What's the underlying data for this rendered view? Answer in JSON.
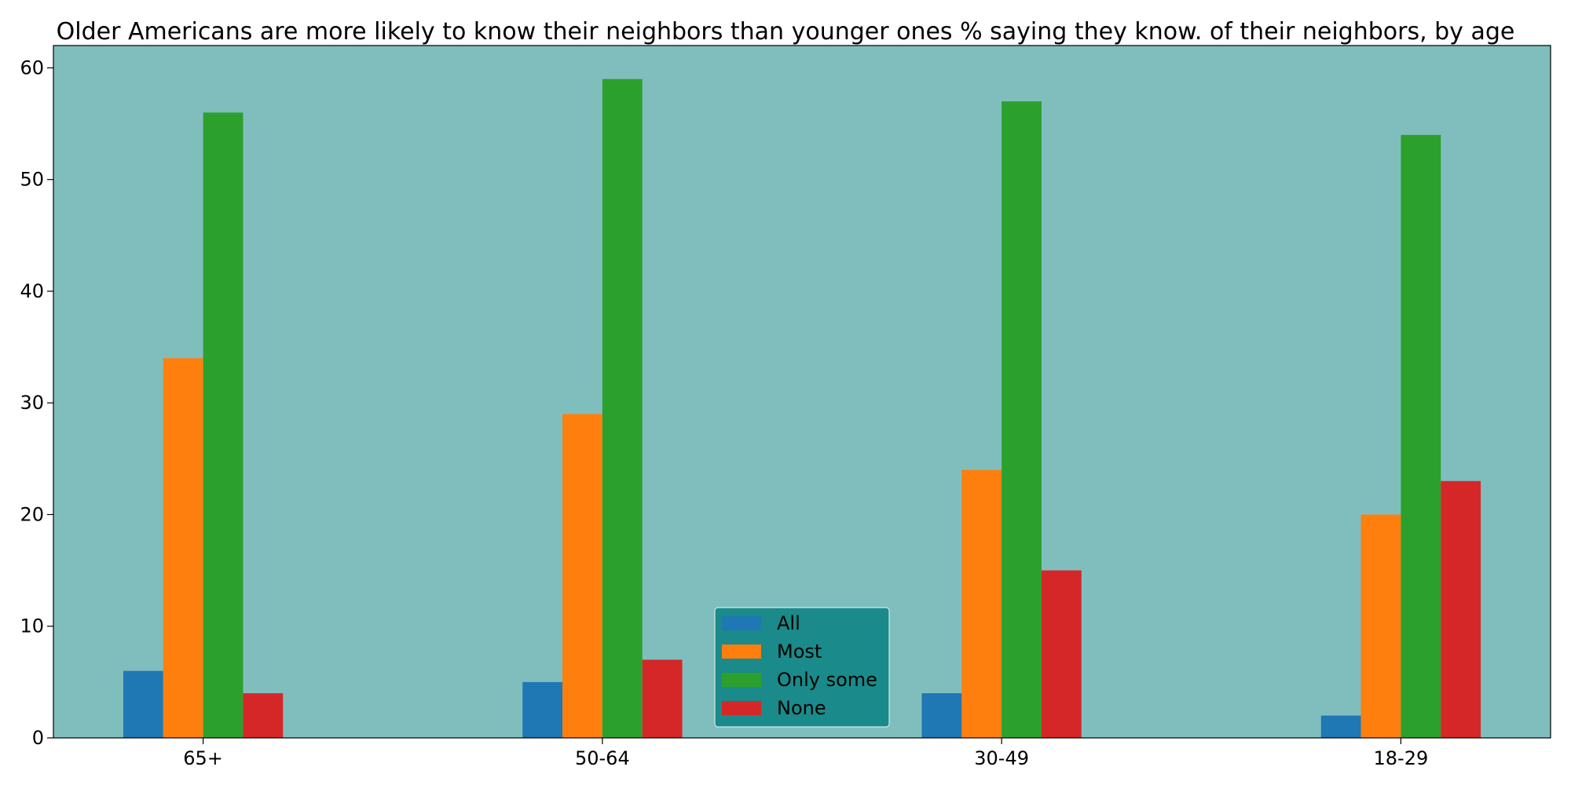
{
  "colors": {
    "plot_background": "#80bebe",
    "legend_background": "#1a8a8a",
    "legend_border": "#cfe7e7",
    "axis": "#000000"
  },
  "chart_data": {
    "type": "bar",
    "title": "Older Americans are more likely to know their neighbors than younger ones % saying they know. of their neighbors, by age",
    "xlabel": "",
    "ylabel": "",
    "categories": [
      "65+",
      "50-64",
      "30-49",
      "18-29"
    ],
    "series": [
      {
        "name": "All",
        "color": "#1f77b4",
        "values": [
          6,
          5,
          4,
          2
        ]
      },
      {
        "name": "Most",
        "color": "#ff7f0e",
        "values": [
          34,
          29,
          24,
          20
        ]
      },
      {
        "name": "Only some",
        "color": "#2ca02c",
        "values": [
          56,
          59,
          57,
          54
        ]
      },
      {
        "name": "None",
        "color": "#d62728",
        "values": [
          4,
          7,
          15,
          23
        ]
      }
    ],
    "ylim": [
      0,
      62
    ],
    "yticks": [
      0,
      10,
      20,
      30,
      40,
      50,
      60
    ],
    "grid": false,
    "legend_position": "lower center"
  }
}
